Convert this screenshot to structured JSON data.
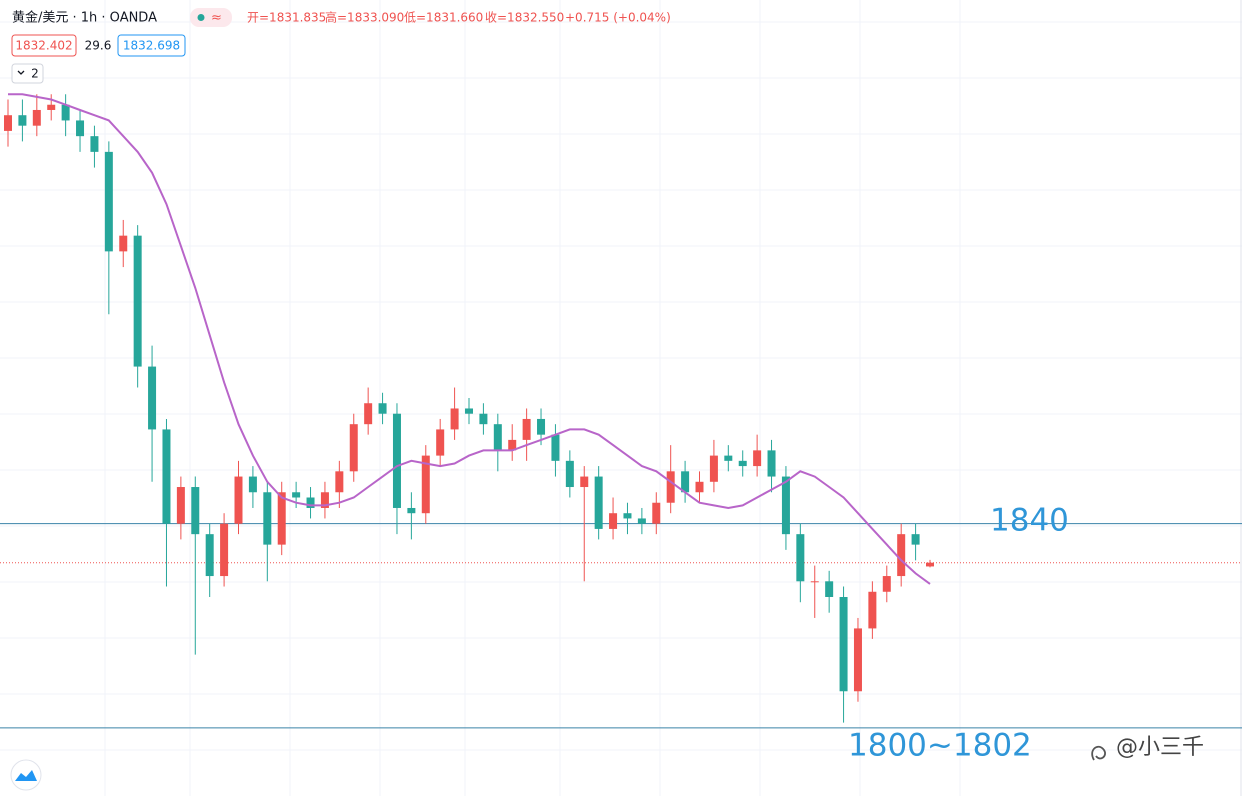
{
  "chart_data": {
    "type": "candlestick",
    "header": {
      "symbol": "黄金/美元 · 1h · OANDA",
      "ohlc": [
        "开=1831.835",
        "高=1833.090",
        "低=1831.660",
        "收=1832.550",
        "+0.715 (+0.04%)"
      ],
      "bid": "1832.402",
      "spread": "29.6",
      "ask": "1832.698",
      "indicator_count": "2"
    },
    "up_color": "#ef5350",
    "down_color": "#26a69a",
    "ylim": [
      1788,
      1940
    ],
    "open": [
      1915,
      1918,
      1916,
      1919,
      1920,
      1917,
      1914,
      1911,
      1892,
      1895,
      1870,
      1858,
      1840,
      1847,
      1838,
      1830,
      1840,
      1849,
      1846,
      1836,
      1846,
      1845,
      1843,
      1846,
      1850,
      1859,
      1863,
      1861,
      1843,
      1842,
      1853,
      1858,
      1862,
      1861,
      1859,
      1854,
      1856,
      1860,
      1857,
      1852,
      1847,
      1849,
      1839,
      1842,
      1841,
      1840,
      1844,
      1850,
      1846,
      1848,
      1853,
      1852,
      1851,
      1854,
      1849,
      1838,
      1829,
      1829,
      1826,
      1808,
      1820,
      1827,
      1830,
      1838,
      1831.835
    ],
    "high": [
      1921,
      1921,
      1922,
      1922,
      1922,
      1919,
      1916,
      1913,
      1898,
      1897,
      1874,
      1860,
      1849,
      1849,
      1840,
      1842,
      1852,
      1851,
      1848,
      1848,
      1848,
      1847,
      1848,
      1852,
      1861,
      1866,
      1865,
      1863,
      1846,
      1855,
      1860,
      1866,
      1864,
      1863,
      1861,
      1859,
      1862,
      1862,
      1859,
      1854,
      1851,
      1851,
      1845,
      1844,
      1843,
      1846,
      1855,
      1852,
      1850,
      1856,
      1855,
      1854,
      1857,
      1856,
      1851,
      1840,
      1832,
      1831,
      1828,
      1822,
      1829,
      1832,
      1840,
      1840,
      1833.09
    ],
    "low": [
      1912,
      1913,
      1914,
      1917,
      1914,
      1911,
      1908,
      1880,
      1889,
      1866,
      1848,
      1828,
      1837,
      1815,
      1826,
      1828,
      1838,
      1843,
      1829,
      1834,
      1843,
      1841,
      1841,
      1843,
      1848,
      1857,
      1859,
      1838,
      1837,
      1840,
      1851,
      1856,
      1859,
      1857,
      1850,
      1852,
      1852,
      1855,
      1849,
      1845,
      1829,
      1837,
      1837,
      1838,
      1838,
      1838,
      1842,
      1844,
      1844,
      1846,
      1850,
      1849,
      1849,
      1846,
      1835,
      1825,
      1822,
      1823,
      1802,
      1806,
      1818,
      1825,
      1828,
      1833,
      1831.66
    ],
    "close": [
      1918,
      1916,
      1919,
      1920,
      1917,
      1914,
      1911,
      1892,
      1895,
      1870,
      1858,
      1840,
      1847,
      1838,
      1830,
      1840,
      1849,
      1846,
      1836,
      1846,
      1845,
      1843,
      1846,
      1850,
      1859,
      1863,
      1861,
      1843,
      1842,
      1853,
      1858,
      1862,
      1861,
      1859,
      1854,
      1856,
      1860,
      1857,
      1852,
      1847,
      1849,
      1839,
      1842,
      1841,
      1840,
      1844,
      1850,
      1846,
      1848,
      1853,
      1852,
      1851,
      1854,
      1849,
      1838,
      1829,
      1829,
      1826,
      1808,
      1820,
      1827,
      1830,
      1838,
      1836,
      1832.55
    ],
    "moving_average": {
      "color": "#b865c9",
      "values": [
        1922,
        1922,
        1921.5,
        1921,
        1920,
        1919,
        1918,
        1917,
        1914,
        1911,
        1907,
        1901,
        1893,
        1885,
        1876,
        1867,
        1859,
        1853,
        1848,
        1845,
        1844,
        1843.5,
        1843.5,
        1844,
        1845,
        1847,
        1849,
        1851,
        1852,
        1851.5,
        1851,
        1851.5,
        1853,
        1854,
        1854,
        1854,
        1855,
        1856,
        1857,
        1858,
        1858,
        1857,
        1855,
        1853,
        1851,
        1850,
        1848,
        1846,
        1844,
        1843.5,
        1843,
        1843.5,
        1845,
        1846.5,
        1848,
        1850,
        1849,
        1847,
        1845,
        1842,
        1839,
        1836,
        1833,
        1830.5,
        1828.5
      ]
    },
    "levels": [
      {
        "value": 1840,
        "label": "1840"
      },
      {
        "value": 1801,
        "label": "1800~1802"
      }
    ],
    "level_color": "#3a83a8",
    "watermark": "@小三千"
  }
}
